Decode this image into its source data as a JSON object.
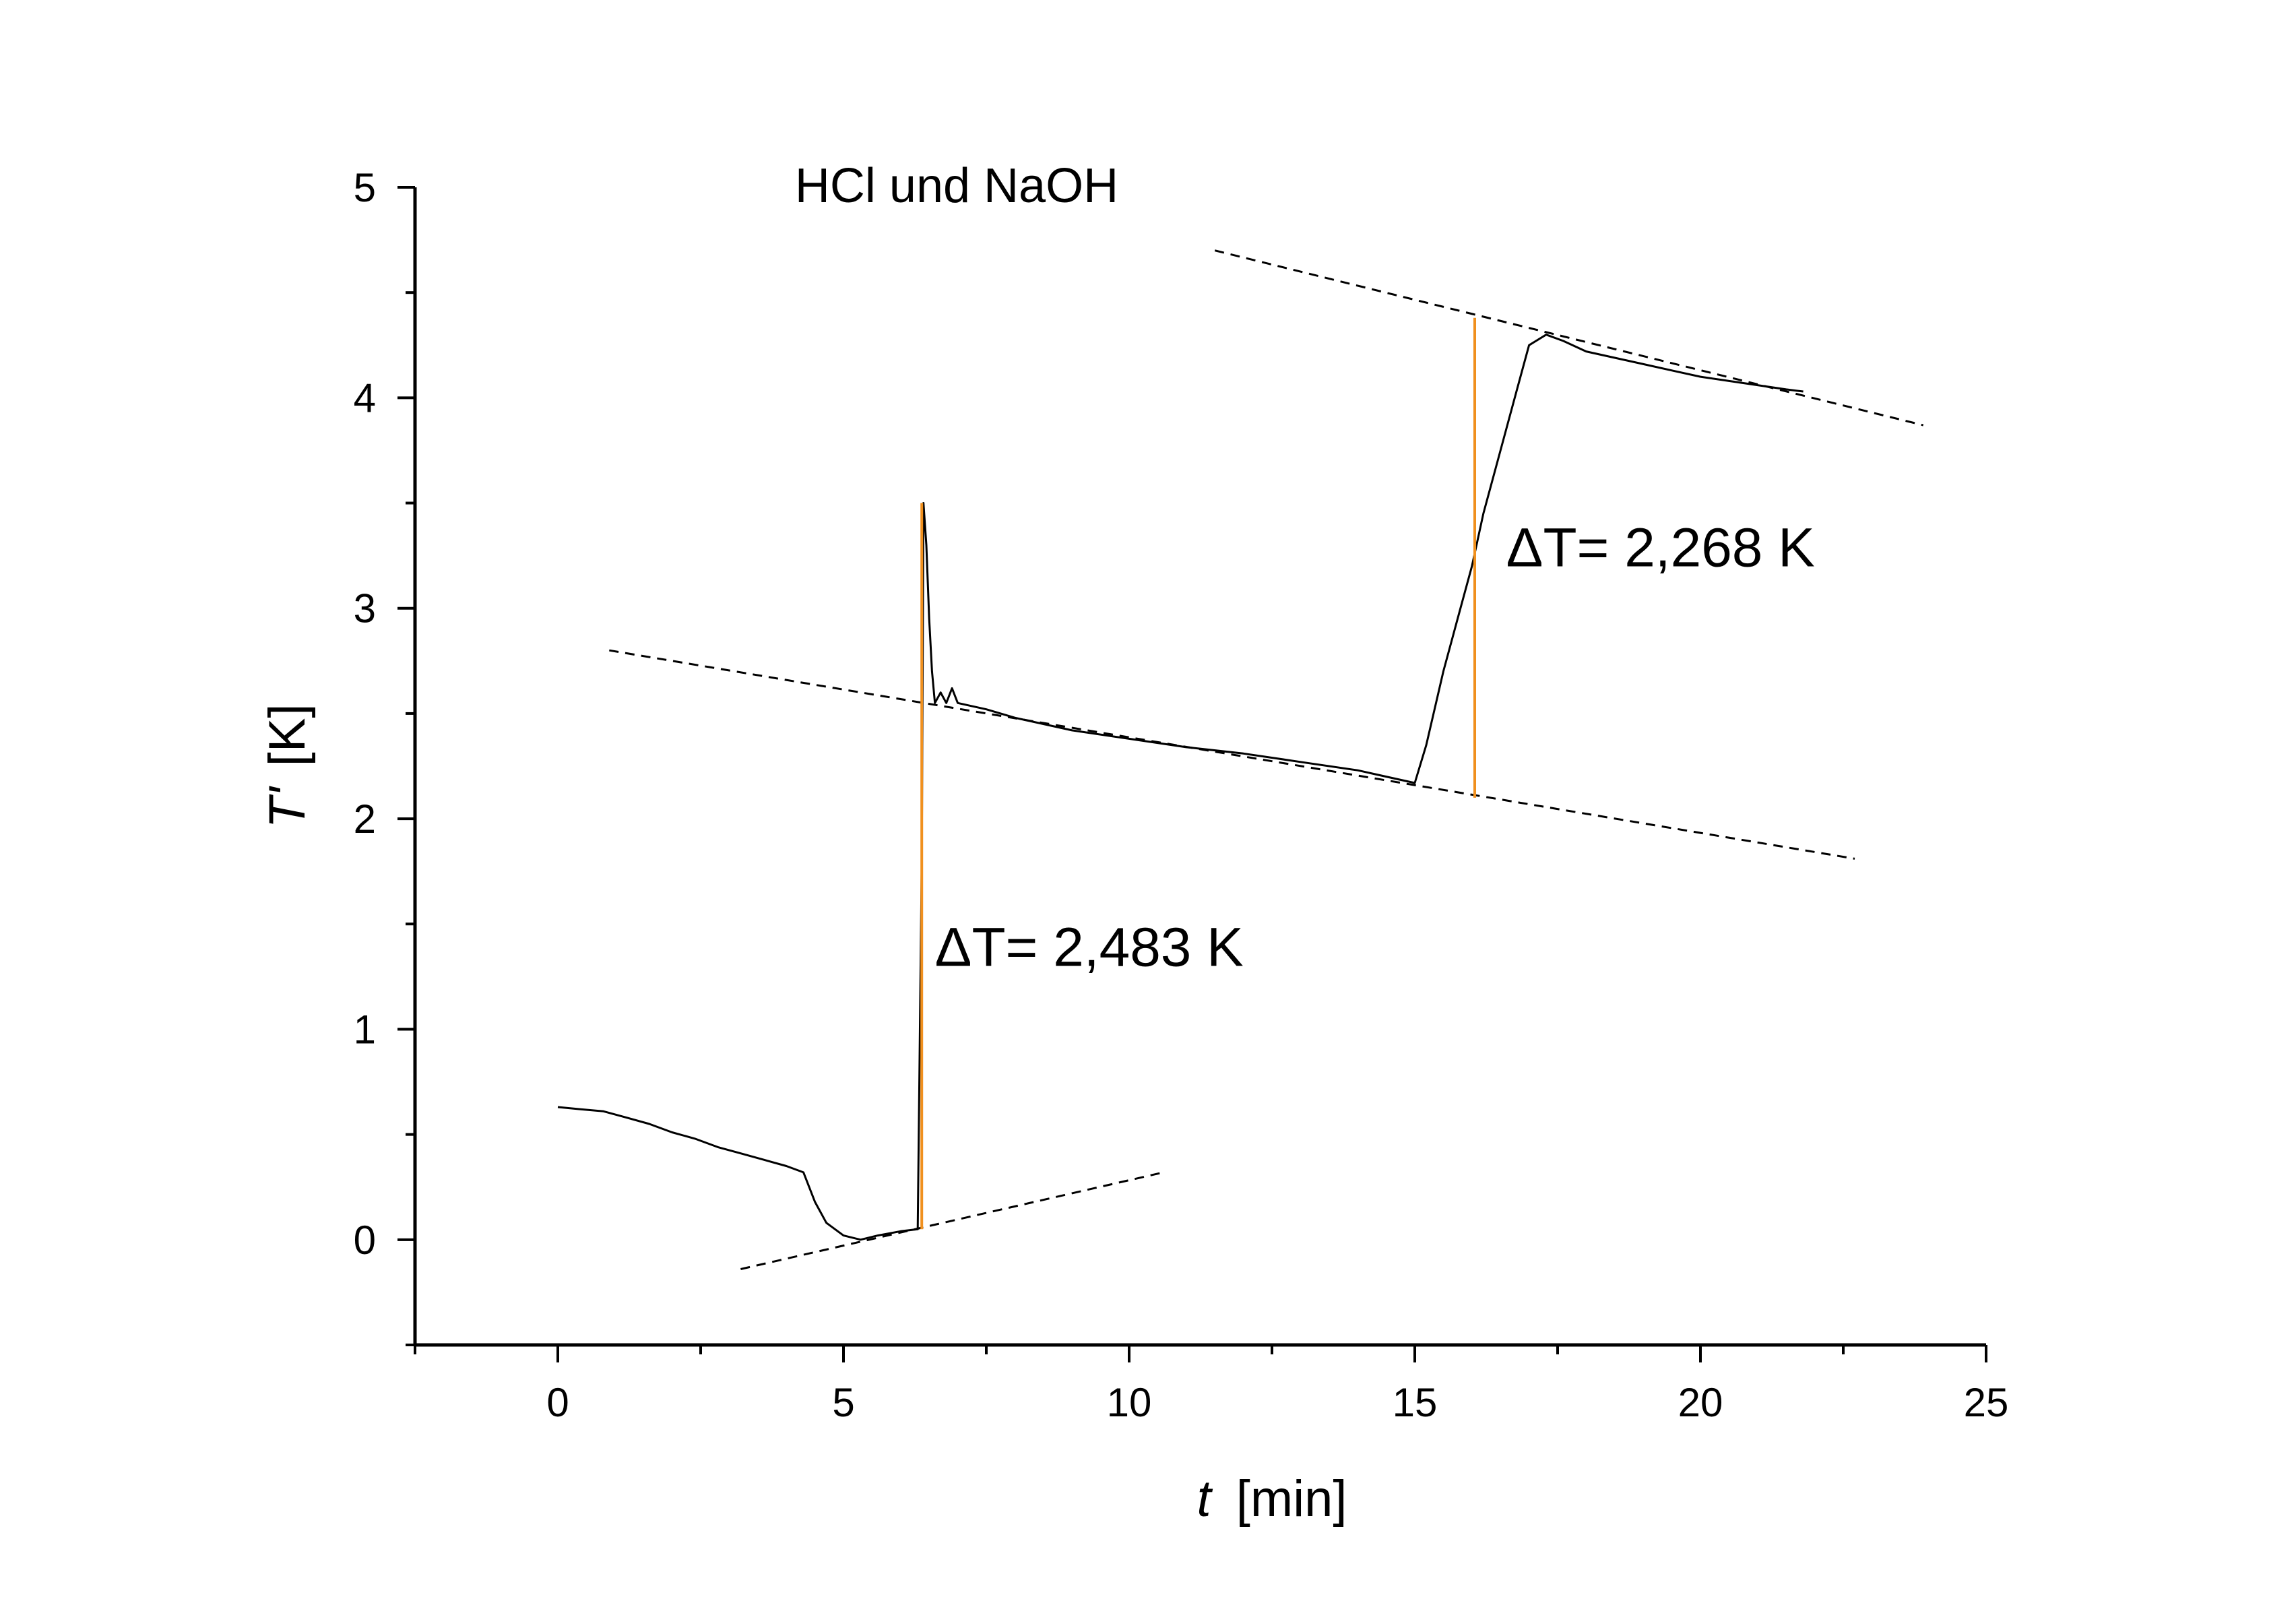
{
  "chart_data": {
    "type": "line",
    "title": "HCl und NaOH",
    "xlabel": "[min]",
    "xlabel_var": "t",
    "ylabel": "[K]",
    "ylabel_var": "T'",
    "xlim": [
      -2.5,
      25
    ],
    "ylim": [
      -0.5,
      5
    ],
    "xticks": [
      0,
      5,
      10,
      15,
      20,
      25
    ],
    "yticks": [
      0,
      1,
      2,
      3,
      4,
      5
    ],
    "grid": false,
    "series": [
      {
        "style": "solid-black",
        "x": [
          0,
          0.4,
          0.8,
          1.2,
          1.6,
          2.0,
          2.4,
          2.8,
          3.2,
          3.6,
          4.0,
          4.3,
          4.5,
          4.7,
          5.0,
          5.3,
          5.6,
          6.0,
          6.3,
          6.37,
          6.4,
          6.45,
          6.5,
          6.55,
          6.6,
          6.7,
          6.8,
          6.9,
          7.0,
          7.5,
          8.0,
          9.0,
          10.0,
          11.0,
          12.0,
          13.0,
          14.0,
          14.5,
          15.0,
          15.2,
          15.5,
          15.8,
          16.0,
          16.2,
          16.5,
          16.8,
          17.0,
          17.3,
          17.6,
          18.0,
          18.5,
          19.0,
          19.5,
          20.0,
          20.5,
          21.0,
          21.5,
          21.8
        ],
        "y": [
          0.63,
          0.62,
          0.61,
          0.58,
          0.55,
          0.51,
          0.48,
          0.44,
          0.41,
          0.38,
          0.35,
          0.32,
          0.18,
          0.08,
          0.02,
          0.0,
          0.02,
          0.04,
          0.05,
          1.8,
          3.5,
          3.3,
          2.95,
          2.7,
          2.55,
          2.6,
          2.55,
          2.62,
          2.55,
          2.52,
          2.48,
          2.42,
          2.38,
          2.34,
          2.31,
          2.27,
          2.23,
          2.2,
          2.17,
          2.35,
          2.7,
          3.0,
          3.2,
          3.45,
          3.75,
          4.05,
          4.25,
          4.3,
          4.27,
          4.22,
          4.19,
          4.16,
          4.13,
          4.1,
          4.08,
          4.06,
          4.04,
          4.03
        ]
      },
      {
        "style": "dashed-black",
        "x": [
          3.2,
          10.6
        ],
        "y": [
          -0.14,
          0.32
        ]
      },
      {
        "style": "dashed-black",
        "x": [
          0.9,
          22.7
        ],
        "y": [
          2.8,
          1.81
        ]
      },
      {
        "style": "dashed-black",
        "x": [
          11.5,
          23.9
        ],
        "y": [
          4.7,
          3.87
        ]
      },
      {
        "style": "solid-orange",
        "x": [
          6.37,
          6.37
        ],
        "y": [
          0.05,
          3.5
        ]
      },
      {
        "style": "solid-orange",
        "x": [
          16.05,
          16.05
        ],
        "y": [
          2.1,
          4.38
        ]
      }
    ],
    "annotations": [
      {
        "text": "ΔT= 2,483 K",
        "x": 6.6,
        "y": 1.3
      },
      {
        "text": "ΔT= 2,268 K",
        "x": 16.6,
        "y": 3.2
      }
    ],
    "colors": {
      "line": "#000000",
      "marker_line": "#f0901e",
      "background": "#ffffff"
    }
  }
}
